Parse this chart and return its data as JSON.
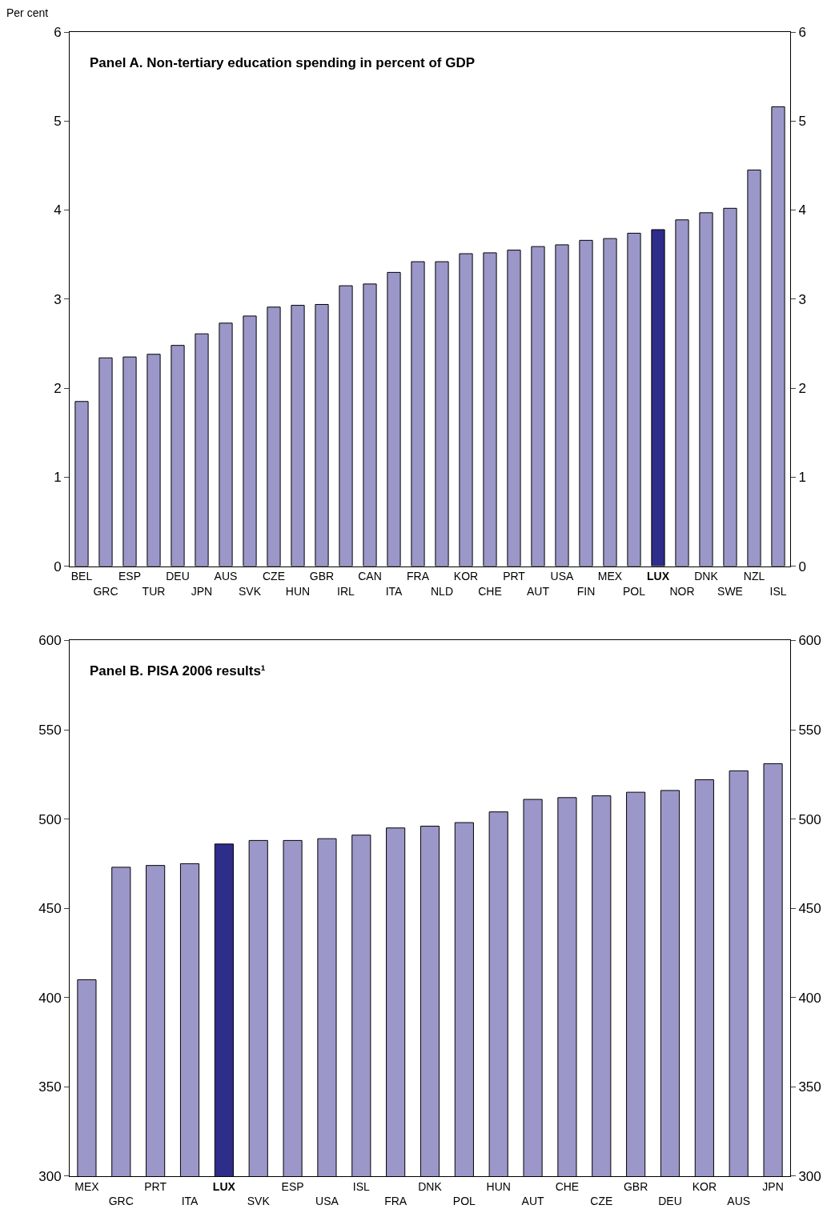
{
  "chart_data": [
    {
      "type": "bar",
      "title": "Panel A. Non-tertiary education spending in percent of GDP",
      "ylabel": "Per cent",
      "categories": [
        "BEL",
        "GRC",
        "ESP",
        "TUR",
        "DEU",
        "JPN",
        "AUS",
        "SVK",
        "CZE",
        "HUN",
        "GBR",
        "IRL",
        "CAN",
        "ITA",
        "FRA",
        "NLD",
        "KOR",
        "CHE",
        "PRT",
        "AUT",
        "USA",
        "FIN",
        "MEX",
        "POL",
        "LUX",
        "NOR",
        "DNK",
        "SWE",
        "NZL",
        "ISL"
      ],
      "values": [
        1.85,
        2.34,
        2.35,
        2.38,
        2.48,
        2.61,
        2.73,
        2.81,
        2.91,
        2.93,
        2.94,
        3.15,
        3.17,
        3.3,
        3.42,
        3.42,
        3.51,
        3.52,
        3.55,
        3.59,
        3.61,
        3.66,
        3.68,
        3.74,
        3.78,
        3.89,
        3.97,
        4.02,
        4.45,
        5.16
      ],
      "colors": [
        "#9b97c9",
        "#9b97c9",
        "#9b97c9",
        "#9b97c9",
        "#9b97c9",
        "#9b97c9",
        "#9b97c9",
        "#9b97c9",
        "#9b97c9",
        "#9b97c9",
        "#9b97c9",
        "#9b97c9",
        "#9b97c9",
        "#9b97c9",
        "#9b97c9",
        "#9b97c9",
        "#9b97c9",
        "#9b97c9",
        "#9b97c9",
        "#9b97c9",
        "#9b97c9",
        "#9b97c9",
        "#9b97c9",
        "#9b97c9",
        "#2e2d8a",
        "#9b97c9",
        "#9b97c9",
        "#9b97c9",
        "#9b97c9",
        "#9b97c9"
      ],
      "ylim": [
        0,
        6
      ],
      "yticks": [
        0,
        1,
        2,
        3,
        4,
        5,
        6
      ],
      "y2lim": [
        0,
        6
      ],
      "y2ticks": [
        0,
        1,
        2,
        3,
        4,
        5,
        6
      ]
    },
    {
      "type": "bar",
      "title": "Panel B. PISA 2006 results¹",
      "categories": [
        "MEX",
        "GRC",
        "PRT",
        "ITA",
        "LUX",
        "SVK",
        "ESP",
        "USA",
        "ISL",
        "FRA",
        "DNK",
        "POL",
        "HUN",
        "AUT",
        "CHE",
        "CZE",
        "GBR",
        "DEU",
        "KOR",
        "AUS",
        "JPN"
      ],
      "values": [
        410,
        473,
        474,
        475,
        486,
        488,
        488,
        489,
        491,
        495,
        496,
        498,
        504,
        511,
        512,
        513,
        515,
        516,
        522,
        527,
        531
      ],
      "colors": [
        "#9b97c9",
        "#9b97c9",
        "#9b97c9",
        "#9b97c9",
        "#2e2d8a",
        "#9b97c9",
        "#9b97c9",
        "#9b97c9",
        "#9b97c9",
        "#9b97c9",
        "#9b97c9",
        "#9b97c9",
        "#9b97c9",
        "#9b97c9",
        "#9b97c9",
        "#9b97c9",
        "#9b97c9",
        "#9b97c9",
        "#9b97c9",
        "#9b97c9",
        "#9b97c9"
      ],
      "ylim": [
        300,
        600
      ],
      "yticks": [
        300,
        350,
        400,
        450,
        500,
        550,
        600
      ],
      "y2lim": [
        300,
        600
      ],
      "y2ticks": [
        300,
        350,
        400,
        450,
        500,
        550,
        600
      ]
    }
  ]
}
